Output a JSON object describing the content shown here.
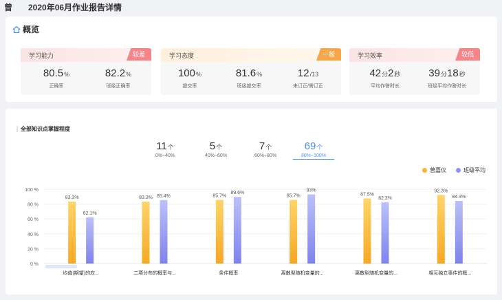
{
  "header": {
    "name": "曾",
    "title": "2020年06月作业报告详情"
  },
  "overview": {
    "title": "概览",
    "panels": [
      {
        "title": "学习能力",
        "badge": "较差",
        "badge_color": "#f4868a",
        "header_color": "#fde4e5",
        "stats": [
          {
            "value": "80.5",
            "unit": "%",
            "label": "正确率"
          },
          {
            "value": "82.2",
            "unit": "%",
            "label": "班级正确率"
          }
        ]
      },
      {
        "title": "学习态度",
        "badge": "一般",
        "badge_color": "#f7a64a",
        "header_color": "#fff1df",
        "stats": [
          {
            "value": "100",
            "unit": "%",
            "label": "提交率"
          },
          {
            "value": "81.6",
            "unit": "%",
            "label": "班级提交率"
          },
          {
            "value": "12",
            "unit": "/13",
            "label": "未订正/需订正"
          }
        ]
      },
      {
        "title": "学习效率",
        "badge": "较低",
        "badge_color": "#f4868a",
        "header_color": "#fde4e5",
        "stats": [
          {
            "value": "42",
            "unit": "分",
            "value2": "2",
            "unit2": "秒",
            "label": "平均作答时长"
          },
          {
            "value": "39",
            "unit": "分",
            "value2": "18",
            "unit2": "秒",
            "label": "班级平均作答时长"
          }
        ]
      }
    ]
  },
  "knowledge": {
    "title": "全部知识点掌握程度",
    "ranges": [
      {
        "count": "11",
        "unit": "个",
        "label": "0%~40%"
      },
      {
        "count": "5",
        "unit": "个",
        "label": "40%~60%"
      },
      {
        "count": "7",
        "unit": "个",
        "label": "60%~80%"
      },
      {
        "count": "69",
        "unit": "个",
        "label": "80%~100%",
        "active": true
      }
    ]
  },
  "chart_data": {
    "type": "bar",
    "categories": [
      "均值(期望)的应...",
      "二项分布的概率与...",
      "条件概率",
      "离散型随机变量的...",
      "离散型随机变量的...",
      "相互独立事件的概..."
    ],
    "series": [
      {
        "name": "曾嘉仪",
        "values": [
          83.3,
          83.3,
          85.7,
          85.7,
          87.5,
          92.3
        ],
        "color": "#f7b733"
      },
      {
        "name": "班级平均",
        "values": [
          62.1,
          85.4,
          89.6,
          93,
          82.3,
          84.3
        ],
        "color": "#8e92f0"
      }
    ],
    "data_labels": [
      [
        "83.3%",
        "83.3%",
        "85.7%",
        "85.7%",
        "87.5%",
        "92.3%"
      ],
      [
        "62.1%",
        "85.4%",
        "89.6%",
        "93%",
        "82.3%",
        "84.3%"
      ]
    ],
    "yticks": [
      "0 %",
      "20 %",
      "40 %",
      "60 %",
      "80 %",
      "100 %"
    ],
    "ylim": [
      0,
      100
    ],
    "legend_position": "top-right",
    "grid": true
  }
}
